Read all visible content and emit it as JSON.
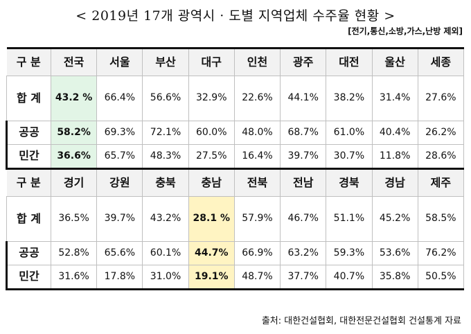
{
  "title": "< 2019년 17개 광역시 · 도별 지역업체 수주율 현황 >",
  "note": "[전기,통신,소방,가스,난방 제외]",
  "section1": {
    "header": [
      "구 분",
      "전국",
      "서울",
      "부산",
      "대구",
      "인천",
      "광주",
      "대전",
      "울산",
      "세종"
    ],
    "total": [
      "합 계",
      "43.2 %",
      "66.4%",
      "56.6%",
      "32.9%",
      "22.6%",
      "44.1%",
      "38.2%",
      "31.4%",
      "27.6%"
    ],
    "public": [
      "공공",
      "58.2%",
      "69.3%",
      "72.1%",
      "60.0%",
      "48.0%",
      "68.7%",
      "61.0%",
      "40.4%",
      "26.2%"
    ],
    "private": [
      "민간",
      "36.6%",
      "65.7%",
      "48.3%",
      "27.5%",
      "16.4%",
      "39.7%",
      "30.7%",
      "11.8%",
      "28.6%"
    ]
  },
  "section2": {
    "header": [
      "구 분",
      "경기",
      "강원",
      "충북",
      "충남",
      "전북",
      "전남",
      "경북",
      "경남",
      "제주"
    ],
    "total": [
      "합 계",
      "36.5%",
      "39.7%",
      "43.2%",
      "28.1 %",
      "57.9%",
      "46.7%",
      "51.1%",
      "45.2%",
      "58.5%"
    ],
    "public": [
      "공공",
      "52.8%",
      "65.6%",
      "60.1%",
      "44.7%",
      "66.9%",
      "63.2%",
      "59.3%",
      "53.6%",
      "76.2%"
    ],
    "private": [
      "민간",
      "31.6%",
      "17.8%",
      "31.0%",
      "19.1%",
      "48.7%",
      "37.7%",
      "40.7%",
      "35.8%",
      "50.5%"
    ]
  },
  "highlight_colors": {
    "green": "#e2f5e6",
    "yellow": "#fff4c2"
  },
  "source": "출처: 대한건설협회, 대한전문건설협회 건설통계 자료"
}
